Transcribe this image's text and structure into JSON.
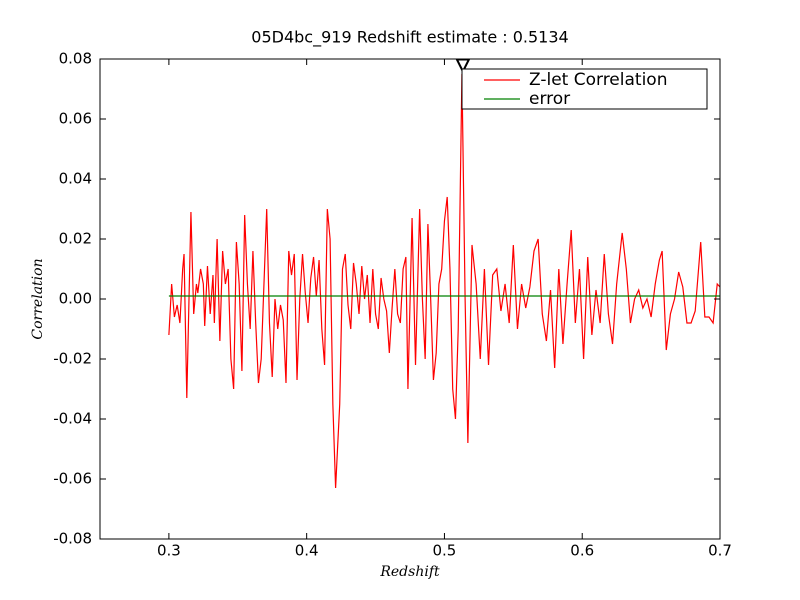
{
  "chart_data": {
    "type": "line",
    "title": "05D4bc_919 Redshift estimate : 0.5134",
    "x_label": "Redshift",
    "y_label": "Correlation",
    "xlim": [
      0.25,
      0.7
    ],
    "ylim": [
      -0.08,
      0.08
    ],
    "xticks": [
      0.3,
      0.4,
      0.5,
      0.6,
      0.7
    ],
    "yticks": [
      -0.08,
      -0.06,
      -0.04,
      -0.02,
      {
        "value": 0,
        "label": "0.00"
      },
      0.02,
      0.04,
      0.06,
      0.08
    ],
    "legend": "upper right",
    "marker": {
      "x": 0.5134,
      "y": 0.0775
    },
    "series": [
      {
        "name": "Z-let Correlation",
        "color": "#ff0000",
        "x": [
          0.3,
          0.302,
          0.304,
          0.306,
          0.308,
          0.31,
          0.311,
          0.313,
          0.316,
          0.318,
          0.32,
          0.321,
          0.323,
          0.325,
          0.326,
          0.328,
          0.33,
          0.332,
          0.333,
          0.335,
          0.337,
          0.339,
          0.341,
          0.343,
          0.345,
          0.347,
          0.349,
          0.351,
          0.353,
          0.355,
          0.357,
          0.359,
          0.361,
          0.363,
          0.365,
          0.367,
          0.369,
          0.371,
          0.373,
          0.375,
          0.377,
          0.379,
          0.381,
          0.383,
          0.385,
          0.387,
          0.389,
          0.391,
          0.393,
          0.395,
          0.397,
          0.399,
          0.401,
          0.403,
          0.405,
          0.407,
          0.409,
          0.411,
          0.413,
          0.415,
          0.417,
          0.419,
          0.421,
          0.424,
          0.426,
          0.428,
          0.43,
          0.432,
          0.434,
          0.436,
          0.438,
          0.44,
          0.442,
          0.444,
          0.446,
          0.448,
          0.45,
          0.452,
          0.454,
          0.456,
          0.458,
          0.46,
          0.462,
          0.464,
          0.466,
          0.468,
          0.47,
          0.472,
          0.4735,
          0.4765,
          0.479,
          0.482,
          0.484,
          0.486,
          0.488,
          0.49,
          0.492,
          0.494,
          0.496,
          0.498,
          0.5,
          0.502,
          0.504,
          0.506,
          0.508,
          0.51,
          0.5127,
          0.515,
          0.517,
          0.52,
          0.523,
          0.526,
          0.529,
          0.532,
          0.535,
          0.538,
          0.541,
          0.544,
          0.547,
          0.55,
          0.553,
          0.556,
          0.559,
          0.562,
          0.565,
          0.568,
          0.571,
          0.574,
          0.577,
          0.58,
          0.583,
          0.586,
          0.589,
          0.592,
          0.595,
          0.598,
          0.601,
          0.604,
          0.607,
          0.61,
          0.613,
          0.616,
          0.619,
          0.622,
          0.625,
          0.629,
          0.632,
          0.635,
          0.638,
          0.641,
          0.644,
          0.647,
          0.65,
          0.653,
          0.656,
          0.658,
          0.661,
          0.664,
          0.667,
          0.67,
          0.673,
          0.676,
          0.679,
          0.682,
          0.686,
          0.689,
          0.692,
          0.695,
          0.698,
          0.7
        ],
        "values": [
          -0.012,
          0.005,
          -0.006,
          -0.002,
          -0.008,
          0.01,
          0.015,
          -0.033,
          0.029,
          -0.005,
          0.005,
          0.002,
          0.01,
          0.005,
          -0.009,
          0.011,
          -0.005,
          0.008,
          -0.008,
          0.02,
          -0.014,
          0.016,
          0.005,
          0.01,
          -0.02,
          -0.03,
          0.019,
          0.005,
          -0.024,
          0.028,
          0.005,
          -0.01,
          0.016,
          -0.008,
          -0.028,
          -0.02,
          0.005,
          0.03,
          -0.008,
          -0.026,
          0.0,
          -0.01,
          -0.002,
          -0.007,
          -0.028,
          0.016,
          0.008,
          0.015,
          -0.027,
          0.0,
          0.015,
          0.002,
          -0.008,
          0.007,
          0.014,
          0.001,
          0.013,
          -0.01,
          -0.022,
          0.03,
          0.02,
          -0.035,
          -0.063,
          -0.035,
          0.01,
          0.015,
          -0.002,
          -0.01,
          0.012,
          0.005,
          -0.005,
          0.011,
          0.0,
          0.008,
          -0.008,
          0.01,
          -0.005,
          -0.01,
          0.007,
          0.0,
          -0.004,
          -0.018,
          -0.003,
          0.01,
          -0.005,
          -0.008,
          0.01,
          0.014,
          -0.03,
          0.027,
          -0.022,
          0.03,
          0.0,
          -0.02,
          0.025,
          0.0,
          -0.027,
          -0.018,
          0.005,
          0.01,
          0.026,
          0.034,
          0.01,
          -0.03,
          -0.04,
          -0.01,
          0.075,
          0.0,
          -0.048,
          0.018,
          0.005,
          -0.02,
          0.01,
          -0.022,
          0.008,
          0.01,
          -0.004,
          0.005,
          -0.008,
          0.018,
          -0.01,
          0.005,
          -0.003,
          0.004,
          0.016,
          0.02,
          -0.005,
          -0.014,
          0.003,
          -0.023,
          0.01,
          -0.015,
          0.005,
          0.023,
          -0.008,
          0.01,
          -0.02,
          0.014,
          -0.012,
          0.003,
          -0.008,
          0.015,
          -0.005,
          -0.015,
          0.005,
          0.022,
          0.01,
          -0.008,
          0.0,
          0.003,
          -0.003,
          0.0,
          -0.006,
          0.005,
          0.013,
          0.016,
          -0.017,
          -0.005,
          0.0,
          0.009,
          0.004,
          -0.008,
          -0.008,
          -0.004,
          0.019,
          -0.006,
          -0.006,
          -0.008,
          0.005,
          0.004
        ]
      },
      {
        "name": "error",
        "color": "#008000",
        "x": [
          0.3,
          0.7
        ],
        "values": [
          0.001,
          0.001
        ]
      }
    ]
  }
}
